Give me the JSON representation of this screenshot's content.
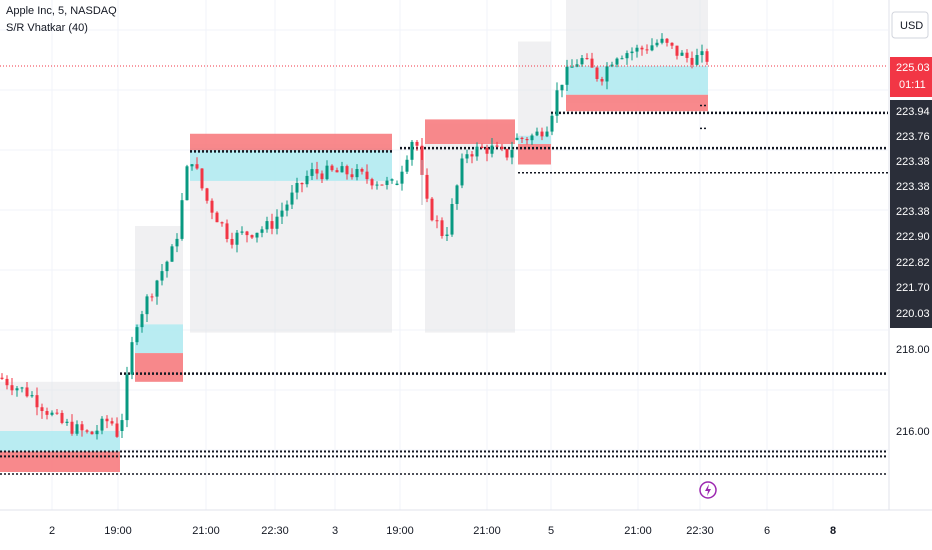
{
  "header": {
    "symbol_title": "Apple Inc, 5, NASDAQ",
    "indicator_name": "S/R Vhatkar (40)"
  },
  "price_axis": {
    "currency": "USD",
    "current_price": "225.03",
    "countdown": "01:11",
    "ticks": [
      "218.00",
      "216.00"
    ],
    "level_tags": [
      "223.94",
      "223.76",
      "223.38",
      "223.38",
      "223.38",
      "222.90",
      "222.82",
      "221.70",
      "220.03"
    ]
  },
  "time_axis": {
    "labels": [
      "2",
      "19:00",
      "21:00",
      "22:30",
      "3",
      "19:00",
      "21:00",
      "5",
      "21:00",
      "22:30",
      "6",
      "8"
    ],
    "bold": [
      false,
      false,
      false,
      false,
      false,
      false,
      false,
      false,
      false,
      false,
      false,
      true
    ]
  },
  "colors": {
    "up": "#089981",
    "down": "#f23645",
    "support_zone": "#b2ebf2",
    "resistance_zone": "#f77c80",
    "range_box": "#e3e4e8",
    "level_line": "#131722",
    "price_tag_bg": "#f23645",
    "level_tag_bg": "#2a2e39"
  },
  "chart_data": {
    "type": "candlestick",
    "title": "Apple Inc, 5, NASDAQ",
    "indicator": "S/R Vhatkar (40)",
    "currency": "USD",
    "ylim": [
      214.6,
      226.8
    ],
    "last_price": 225.03,
    "segments": [
      {
        "session": "2",
        "start": 0,
        "end": 120,
        "path": [
          [
            0,
            217.3
          ],
          [
            30,
            216.9
          ],
          [
            60,
            216.2
          ],
          [
            90,
            215.9
          ],
          [
            110,
            216.3
          ],
          [
            120,
            215.8
          ]
        ]
      },
      {
        "session": "2",
        "start": 120,
        "end": 392,
        "path": [
          [
            120,
            216.0
          ],
          [
            135,
            218.6
          ],
          [
            155,
            219.6
          ],
          [
            175,
            220.5
          ],
          [
            190,
            222.8
          ],
          [
            205,
            221.7
          ],
          [
            230,
            220.7
          ],
          [
            270,
            221.0
          ],
          [
            310,
            222.3
          ],
          [
            350,
            222.3
          ],
          [
            390,
            222.0
          ]
        ]
      },
      {
        "session": "3",
        "start": 395,
        "end": 515,
        "path": [
          [
            395,
            222.0
          ],
          [
            415,
            223.3
          ],
          [
            425,
            221.6
          ],
          [
            445,
            220.7
          ],
          [
            465,
            222.8
          ],
          [
            490,
            222.9
          ],
          [
            505,
            222.7
          ],
          [
            515,
            223.0
          ]
        ]
      },
      {
        "session": "5",
        "start": 515,
        "end": 708,
        "path": [
          [
            515,
            223.1
          ],
          [
            535,
            223.2
          ],
          [
            548,
            223.5
          ],
          [
            560,
            224.5
          ],
          [
            580,
            225.1
          ],
          [
            600,
            224.6
          ],
          [
            615,
            225.2
          ],
          [
            640,
            225.3
          ],
          [
            660,
            225.5
          ],
          [
            685,
            225.1
          ],
          [
            708,
            225.1
          ]
        ]
      }
    ],
    "levels": [
      223.94,
      223.76,
      223.38,
      223.38,
      223.38,
      222.9,
      222.82,
      221.7,
      220.03,
      217.4,
      215.5,
      215.4,
      215.0
    ],
    "zones": [
      {
        "kind": "range",
        "x0": 0,
        "x1": 120,
        "y0": 215.3,
        "y1": 217.2
      },
      {
        "kind": "support",
        "x0": 0,
        "x1": 120,
        "y0": 215.5,
        "y1": 216.0
      },
      {
        "kind": "resistance",
        "x0": 0,
        "x1": 120,
        "y0": 215.0,
        "y1": 215.5
      },
      {
        "kind": "range",
        "x0": 135,
        "x1": 183,
        "y0": 217.2,
        "y1": 221.0
      },
      {
        "kind": "support",
        "x0": 135,
        "x1": 183,
        "y0": 217.9,
        "y1": 218.6
      },
      {
        "kind": "resistance",
        "x0": 135,
        "x1": 183,
        "y0": 217.2,
        "y1": 217.9
      },
      {
        "kind": "range",
        "x0": 190,
        "x1": 392,
        "y0": 218.4,
        "y1": 223.0
      },
      {
        "kind": "support",
        "x0": 190,
        "x1": 392,
        "y0": 222.1,
        "y1": 222.9
      },
      {
        "kind": "resistance",
        "x0": 190,
        "x1": 392,
        "y0": 222.85,
        "y1": 223.25
      },
      {
        "kind": "range",
        "x0": 425,
        "x1": 515,
        "y0": 218.4,
        "y1": 223.5
      },
      {
        "kind": "resistance",
        "x0": 425,
        "x1": 515,
        "y0": 223.0,
        "y1": 223.6
      },
      {
        "kind": "range",
        "x0": 518,
        "x1": 551,
        "y0": 223.0,
        "y1": 225.5
      },
      {
        "kind": "support",
        "x0": 518,
        "x1": 551,
        "y0": 223.0,
        "y1": 223.2
      },
      {
        "kind": "resistance",
        "x0": 518,
        "x1": 551,
        "y0": 222.5,
        "y1": 223.0
      },
      {
        "kind": "range",
        "x0": 566,
        "x1": 708,
        "y0": 224.0,
        "y1": 226.8
      },
      {
        "kind": "support",
        "x0": 566,
        "x1": 708,
        "y0": 224.2,
        "y1": 224.9
      },
      {
        "kind": "resistance",
        "x0": 566,
        "x1": 708,
        "y0": 223.8,
        "y1": 224.2
      }
    ]
  }
}
